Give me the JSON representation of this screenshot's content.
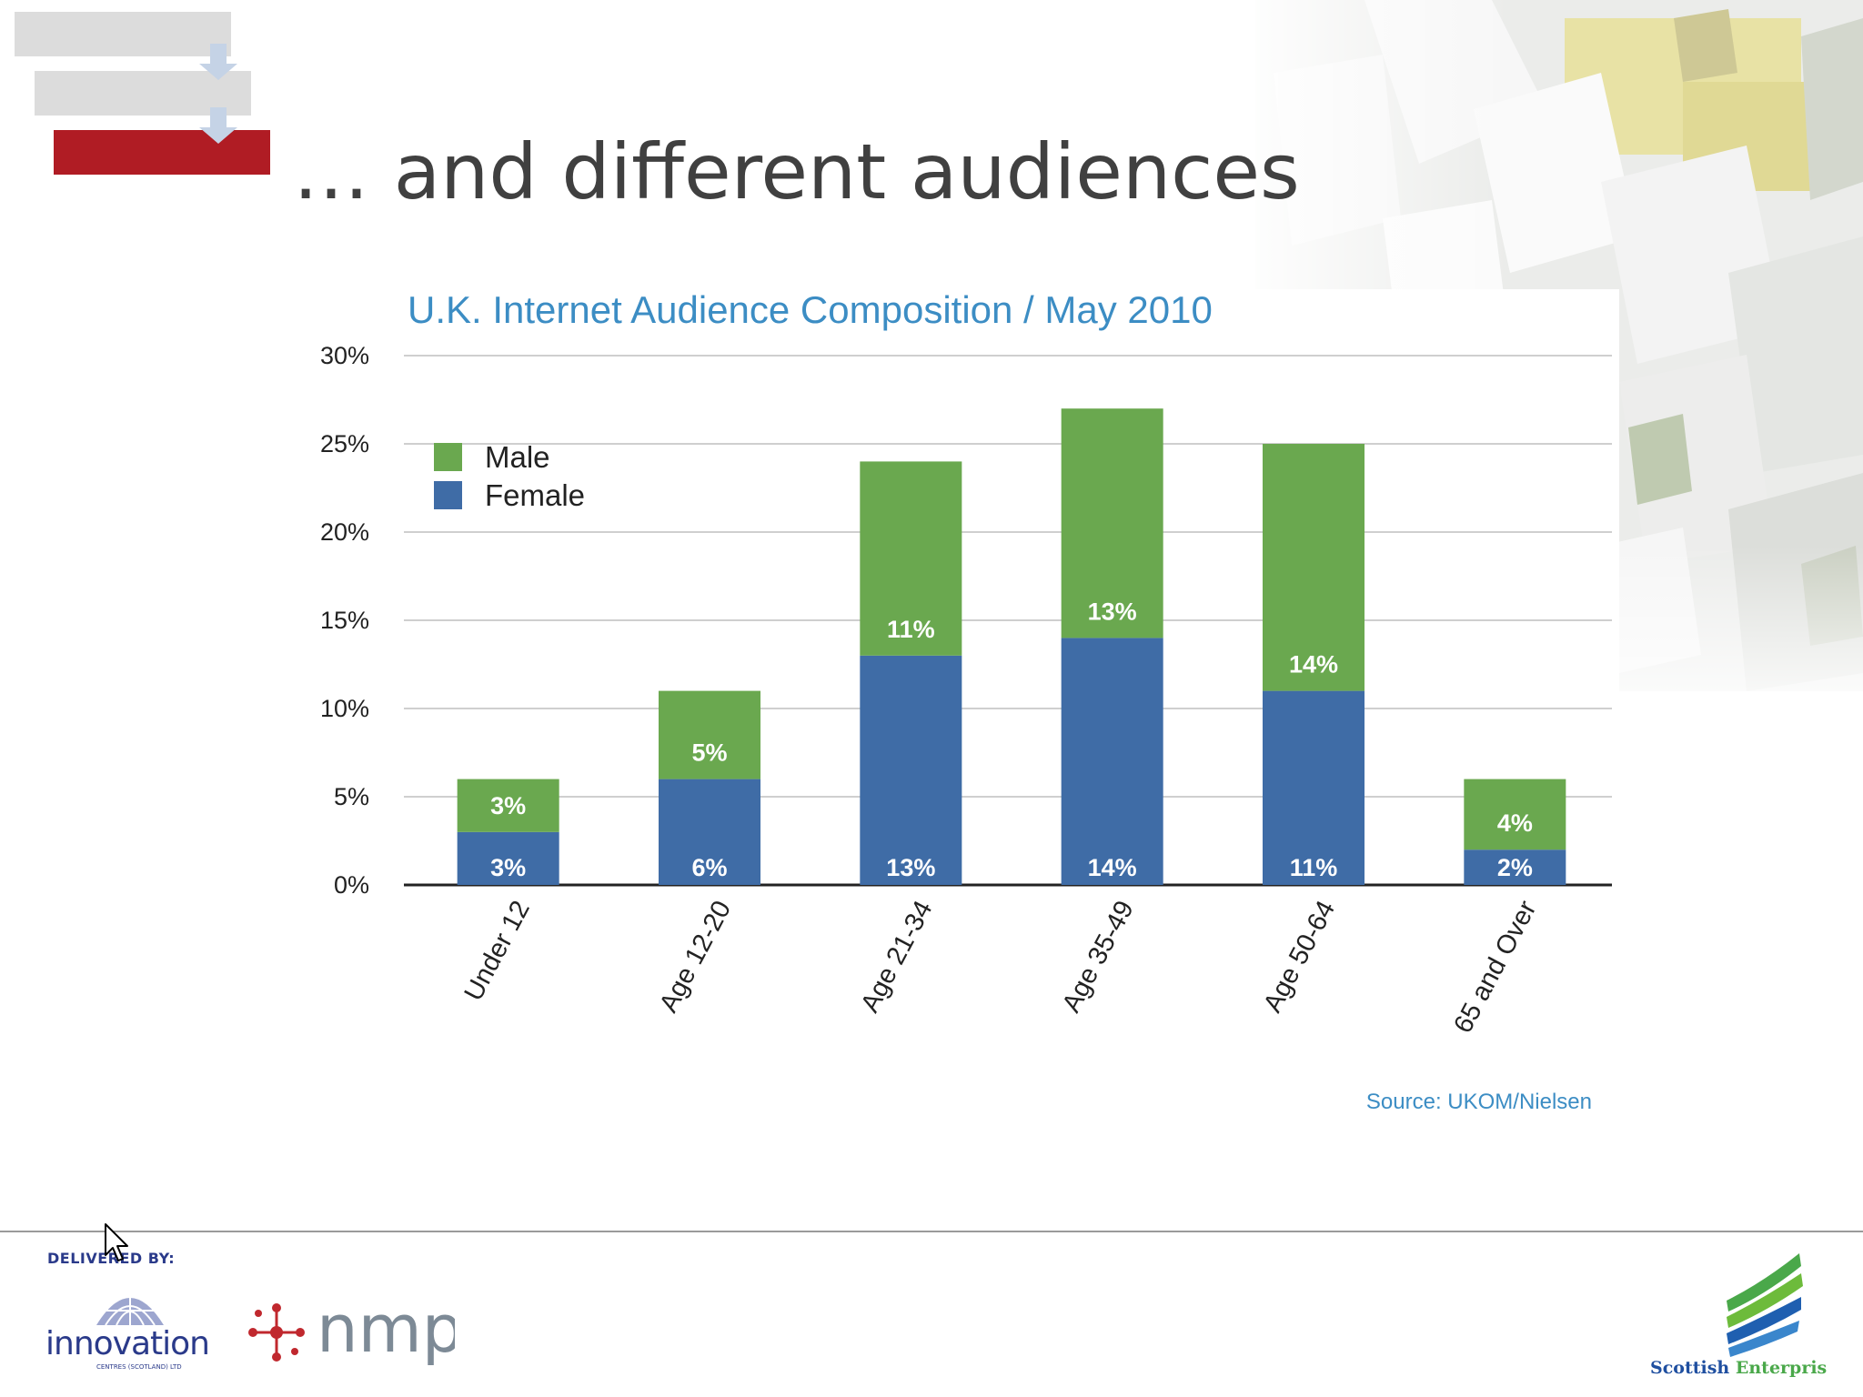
{
  "slide": {
    "title": "… and different audiences",
    "delivered_by": "DELIVERED BY:",
    "logos": {
      "innovation": {
        "name": "innovation",
        "subtext": "CENTRES (SCOTLAND) LTD"
      },
      "nmp": {
        "name": "nmp"
      },
      "scottish_enterprise": {
        "word1": "Scottish",
        "word2": "Enterprise"
      }
    },
    "icons": [
      "arrow-down-icon",
      "cursor-icon",
      "innovation-dome-icon",
      "nmp-molecule-icon",
      "scottish-enterprise-swoosh-icon"
    ]
  },
  "chart_data": {
    "type": "bar",
    "stacked": true,
    "title": "U.K. Internet Audience Composition / May 2010",
    "xlabel": "",
    "ylabel": "",
    "ylim": [
      0,
      30
    ],
    "y_ticks": [
      "0%",
      "5%",
      "10%",
      "15%",
      "20%",
      "25%",
      "30%"
    ],
    "y_tick_values": [
      0,
      5,
      10,
      15,
      20,
      25,
      30
    ],
    "categories": [
      "Under 12",
      "Age 12-20",
      "Age 21-34",
      "Age 35-49",
      "Age 50-64",
      "65 and Over"
    ],
    "series": [
      {
        "name": "Female",
        "color": "#3f6ca6",
        "values": [
          3,
          6,
          13,
          14,
          11,
          2
        ],
        "labels": [
          "3%",
          "6%",
          "13%",
          "14%",
          "11%",
          "2%"
        ]
      },
      {
        "name": "Male",
        "color": "#6aa84f",
        "values": [
          3,
          5,
          11,
          13,
          14,
          4
        ],
        "labels": [
          "3%",
          "5%",
          "11%",
          "13%",
          "14%",
          "4%"
        ]
      }
    ],
    "legend": {
      "placement": "top-left",
      "order": [
        "Male",
        "Female"
      ]
    },
    "grid": true,
    "source": "Source: UKOM/Nielsen"
  },
  "colors": {
    "title_blue": "#3c8dc4",
    "red_bar": "#b01c24",
    "grey_bar": "#dcdcdc",
    "axis": "#222222"
  }
}
